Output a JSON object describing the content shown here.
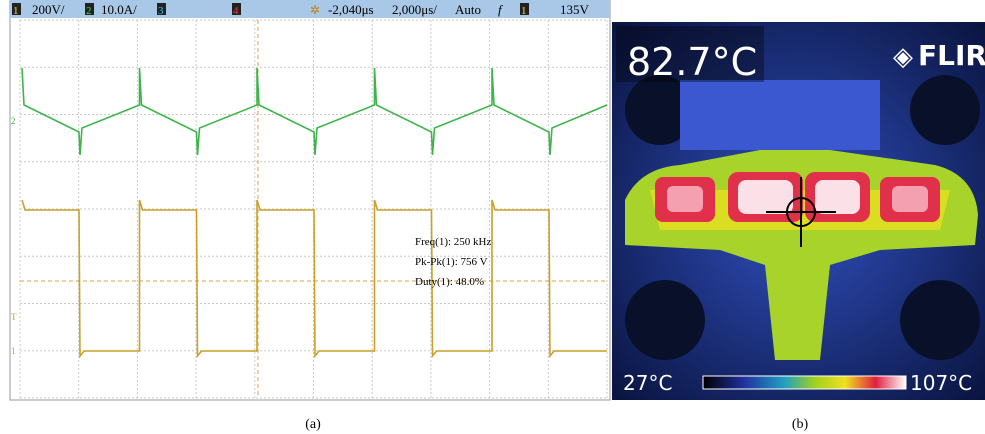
{
  "panel_a": {
    "header": {
      "ch1": "1",
      "ch1_scale": "200V/",
      "ch2": "2",
      "ch2_scale": "10.0A/",
      "ch3": "3",
      "ch4": "4",
      "delay": "-2,040μs",
      "timebase": "2,000μs/",
      "mode": "Auto",
      "slope": "f",
      "trigger_ch": "1",
      "trigger_level": "135V"
    },
    "markers": [
      "2",
      "T",
      "1"
    ],
    "measurements": [
      "Freq(1): 250 kHz",
      "Pk-Pk(1): 756 V",
      "Duty(1): 48.0%"
    ],
    "caption": "(a)"
  },
  "panel_b": {
    "temperature": "82.7°C",
    "logo": "FLIR",
    "scale_min": "27°C",
    "scale_max": "107°C",
    "caption": "(b)"
  }
}
